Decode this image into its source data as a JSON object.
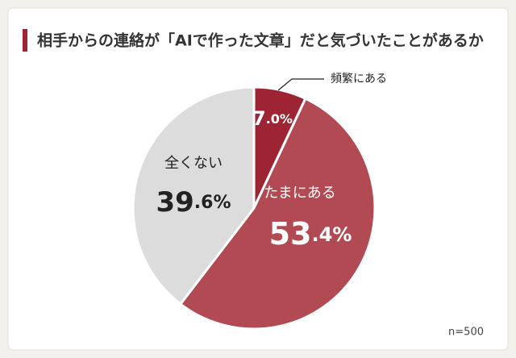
{
  "chart_data": {
    "type": "pie",
    "title": "相手からの連絡が「AIで作った文章」だと気づいたことがあるか",
    "categories": [
      "頻繁にある",
      "たまにある",
      "全くない"
    ],
    "values": [
      7.0,
      53.4,
      39.6
    ],
    "value_labels": [
      "7.0%",
      "53.4%",
      "39.6%"
    ],
    "colors": [
      "#9c2433",
      "#b24a53",
      "#dcdcdc"
    ],
    "note": "n=500"
  }
}
